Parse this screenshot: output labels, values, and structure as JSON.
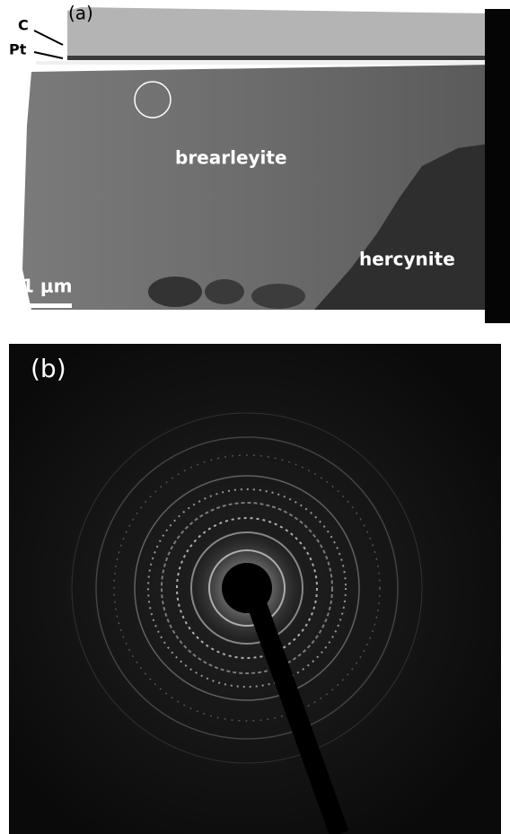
{
  "panel_a": {
    "label": "(a)",
    "layer_c": "C",
    "layer_pt": "Pt",
    "phase_1": "brearleyite",
    "phase_2": "hercynite",
    "scale_bar": "1 μm"
  },
  "panel_b": {
    "label": "(b)"
  }
}
